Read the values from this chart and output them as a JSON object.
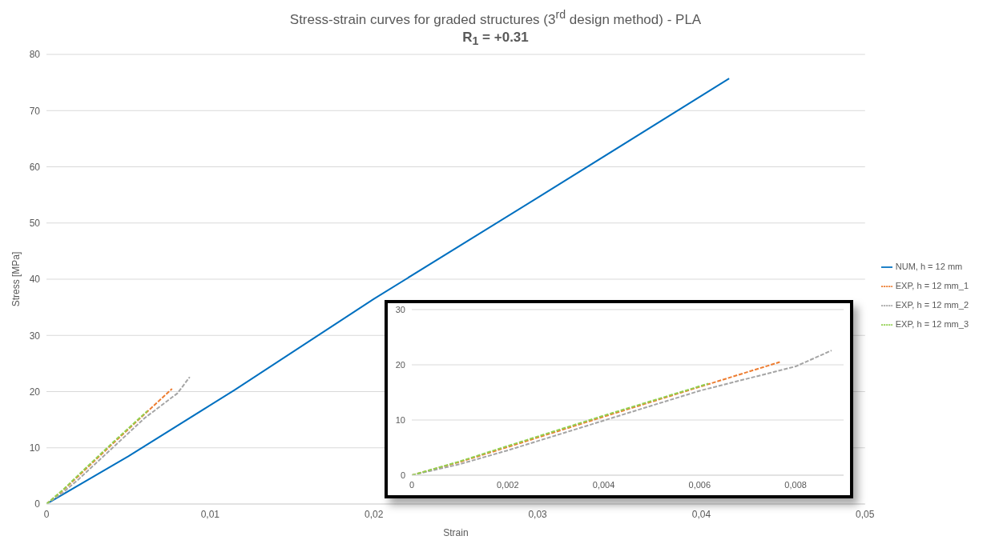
{
  "chart_data": [
    {
      "type": "line",
      "title": "Stress-strain curves for graded structures (3$^{rd}$ design method) - PLA",
      "subtitle": "R$_{1}$ = +0.31",
      "xlabel": "Strain",
      "ylabel": "Stress [MPa]",
      "xlim": [
        0,
        0.05
      ],
      "xticks": [
        0,
        {
          "value": 0.01,
          "label": "0,01"
        },
        {
          "value": 0.02,
          "label": "0,02"
        },
        {
          "value": 0.03,
          "label": "0,03"
        },
        {
          "value": 0.04,
          "label": "0,04"
        },
        {
          "value": 0.05,
          "label": "0,05"
        }
      ],
      "ylim": [
        0,
        80
      ],
      "yticks": [
        0,
        10,
        20,
        30,
        40,
        50,
        60,
        70,
        80
      ],
      "grid": "y",
      "legend": "right",
      "marker": "none",
      "series": [
        {
          "name": "NUM, h = 12 mm",
          "color": "#0070c0",
          "line_style": "solid",
          "x": [
            0,
            0.005,
            0.0115,
            0.02,
            0.03,
            0.0417
          ],
          "values": [
            0,
            8.5,
            20.3,
            36.5,
            54.5,
            75.7
          ]
        },
        {
          "name": "EXP, h = 12 mm_1",
          "color": "#ed7d31",
          "line_style": "dashed",
          "x": [
            0,
            0.001,
            0.002,
            0.004,
            0.006,
            0.00767
          ],
          "values": [
            0,
            2.4,
            5.1,
            10.6,
            16,
            20.5
          ]
        },
        {
          "name": "EXP, h = 12 mm_2",
          "color": "#a5a5a5",
          "line_style": "dashed",
          "x": [
            0,
            0.001,
            0.002,
            0.004,
            0.006,
            0.008,
            0.00875
          ],
          "values": [
            0,
            2,
            4.5,
            9.9,
            15.3,
            19.7,
            22.6
          ]
        },
        {
          "name": "EXP, h = 12 mm_3",
          "color": "#92d050",
          "line_style": "dashed",
          "x": [
            0,
            0.001,
            0.002,
            0.004,
            0.00618
          ],
          "values": [
            0,
            2.5,
            5.3,
            10.8,
            16.6
          ]
        }
      ]
    },
    {
      "type": "line",
      "xlim": [
        0,
        0.009
      ],
      "xticks": [
        0,
        {
          "value": 0.002,
          "label": "0,002"
        },
        {
          "value": 0.004,
          "label": "0,004"
        },
        {
          "value": 0.006,
          "label": "0,006"
        },
        {
          "value": 0.008,
          "label": "0,008"
        }
      ],
      "ylim": [
        0,
        30
      ],
      "yticks": [
        0,
        10,
        20,
        30
      ],
      "grid": "y",
      "marker": "none",
      "series": [
        {
          "color": "#ed7d31",
          "line_style": "dashed",
          "x": [
            0,
            0.001,
            0.002,
            0.004,
            0.006,
            0.00767
          ],
          "values": [
            0,
            2.4,
            5.1,
            10.6,
            16,
            20.5
          ]
        },
        {
          "color": "#a5a5a5",
          "line_style": "dashed",
          "x": [
            0,
            0.001,
            0.002,
            0.004,
            0.006,
            0.008,
            0.00875
          ],
          "values": [
            0,
            2,
            4.5,
            9.9,
            15.3,
            19.7,
            22.6
          ]
        },
        {
          "color": "#92d050",
          "line_style": "dashed",
          "x": [
            0,
            0.001,
            0.002,
            0.004,
            0.00618
          ],
          "values": [
            0,
            2.5,
            5.3,
            10.8,
            16.6
          ]
        }
      ]
    }
  ]
}
